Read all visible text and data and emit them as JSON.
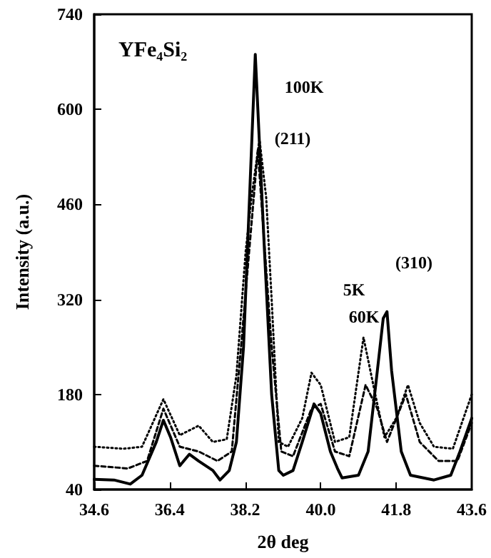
{
  "chart_data": {
    "type": "line",
    "title": "YFe$_{4}$Si$_{2}$",
    "xlabel": "2θ deg",
    "ylabel": "Intensity (a.u.)",
    "xlim": [
      34.6,
      43.6
    ],
    "xticks": [
      34.6,
      36.4,
      38.2,
      {
        "value": 40,
        "label": "40.0"
      },
      41.8,
      43.6
    ],
    "ylim": [
      40,
      740
    ],
    "yticks": [
      40,
      180,
      320,
      460,
      600,
      740
    ],
    "grid": false,
    "marker": "none",
    "series": [
      {
        "color": "#000000",
        "line_style": "solid",
        "x": [
          34.6,
          35.07,
          35.46,
          35.74,
          36.08,
          36.25,
          36.42,
          36.64,
          36.87,
          37.09,
          37.43,
          37.6,
          37.82,
          37.99,
          38.16,
          38.44,
          38.66,
          38.83,
          39.0,
          39.11,
          39.34,
          39.56,
          39.84,
          40.0,
          40.23,
          40.4,
          40.51,
          40.9,
          41.13,
          41.35,
          41.49,
          41.58,
          41.69,
          41.92,
          42.14,
          42.7,
          43.1,
          43.32,
          43.6
        ],
        "values": [
          55,
          54,
          48,
          61,
          110,
          142,
          117,
          75,
          92,
          82,
          68,
          54,
          68,
          110,
          250,
          681,
          390,
          180,
          68,
          61,
          68,
          110,
          166,
          152,
          96,
          71,
          57,
          61,
          96,
          215,
          292,
          302,
          215,
          96,
          61,
          54,
          61,
          96,
          145
        ]
      },
      {
        "color": "#000000",
        "line_style": "dotted",
        "x": [
          34.6,
          35.3,
          35.74,
          36.25,
          36.64,
          37.09,
          37.43,
          37.76,
          37.99,
          38.21,
          38.35,
          38.54,
          38.7,
          38.83,
          39.0,
          39.22,
          39.56,
          39.78,
          40.0,
          40.34,
          40.68,
          41.02,
          41.3,
          41.52,
          41.8,
          42.08,
          42.36,
          42.7,
          43.15,
          43.6
        ],
        "values": [
          103,
          100,
          103,
          173,
          120,
          134,
          110,
          114,
          208,
          390,
          470,
          556,
          470,
          320,
          110,
          103,
          145,
          212,
          194,
          110,
          117,
          264,
          180,
          117,
          145,
          194,
          138,
          103,
          100,
          180
        ]
      },
      {
        "color": "#000000",
        "line_style": "dashed",
        "x": [
          34.6,
          35.4,
          35.86,
          36.25,
          36.64,
          37.09,
          37.54,
          37.88,
          38.1,
          38.5,
          38.83,
          39.06,
          39.34,
          39.78,
          40.0,
          40.34,
          40.68,
          41.07,
          41.35,
          41.58,
          42.03,
          42.36,
          42.81,
          43.26,
          43.6
        ],
        "values": [
          75,
          71,
          82,
          159,
          103,
          96,
          82,
          96,
          250,
          540,
          250,
          96,
          89,
          159,
          166,
          96,
          89,
          194,
          159,
          110,
          180,
          110,
          82,
          82,
          138
        ]
      }
    ],
    "annotations": [
      "100K",
      "(211)",
      "(310)",
      "5K",
      "60K"
    ]
  }
}
